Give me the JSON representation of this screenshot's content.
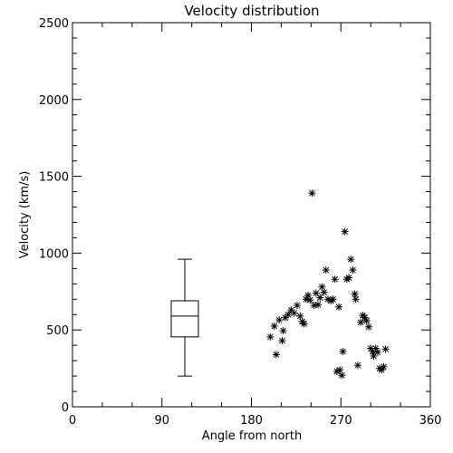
{
  "chart_data": {
    "type": "scatter",
    "title": "Velocity distribution",
    "xlabel": "Angle from north",
    "ylabel": "Velocity (km/s)",
    "xlim": [
      0,
      360
    ],
    "ylim": [
      0,
      2500
    ],
    "x_ticks": [
      0,
      90,
      180,
      270,
      360
    ],
    "y_ticks": [
      0,
      500,
      1000,
      1500,
      2000,
      2500
    ],
    "grid": false,
    "boxplot": {
      "x": 113,
      "min": 200,
      "q1": 455,
      "median": 590,
      "q3": 690,
      "max": 960
    },
    "points": [
      [
        199,
        455
      ],
      [
        203,
        525
      ],
      [
        205,
        340
      ],
      [
        208,
        565
      ],
      [
        211,
        430
      ],
      [
        212,
        495
      ],
      [
        214,
        580
      ],
      [
        217,
        600
      ],
      [
        220,
        630
      ],
      [
        223,
        610
      ],
      [
        226,
        660
      ],
      [
        229,
        590
      ],
      [
        231,
        555
      ],
      [
        233,
        540
      ],
      [
        235,
        700
      ],
      [
        237,
        725
      ],
      [
        239,
        695
      ],
      [
        241,
        1390
      ],
      [
        243,
        660
      ],
      [
        245,
        740
      ],
      [
        247,
        665
      ],
      [
        249,
        710
      ],
      [
        251,
        780
      ],
      [
        253,
        745
      ],
      [
        255,
        890
      ],
      [
        257,
        700
      ],
      [
        260,
        690
      ],
      [
        262,
        700
      ],
      [
        264,
        830
      ],
      [
        266,
        230
      ],
      [
        268,
        650
      ],
      [
        269,
        240
      ],
      [
        271,
        205
      ],
      [
        272,
        360
      ],
      [
        274,
        1140
      ],
      [
        276,
        830
      ],
      [
        278,
        840
      ],
      [
        280,
        960
      ],
      [
        282,
        890
      ],
      [
        284,
        735
      ],
      [
        285,
        700
      ],
      [
        287,
        270
      ],
      [
        290,
        550
      ],
      [
        292,
        595
      ],
      [
        294,
        580
      ],
      [
        296,
        560
      ],
      [
        298,
        520
      ],
      [
        300,
        380
      ],
      [
        302,
        360
      ],
      [
        303,
        330
      ],
      [
        305,
        380
      ],
      [
        307,
        355
      ],
      [
        309,
        250
      ],
      [
        311,
        240
      ],
      [
        313,
        260
      ],
      [
        315,
        375
      ]
    ]
  }
}
